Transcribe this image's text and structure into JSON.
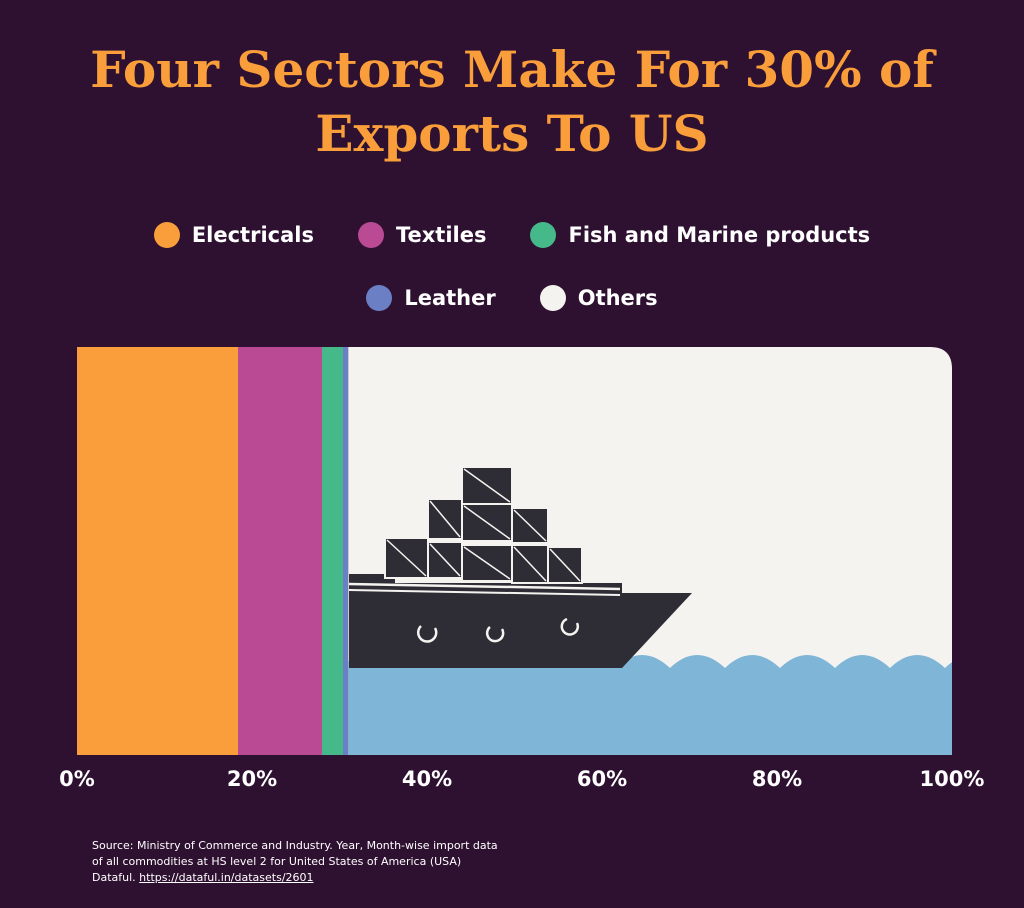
{
  "chart_data": {
    "type": "bar",
    "orientation": "horizontal-stacked-100",
    "title": "Four Sectors Make For 30% of Exports To US",
    "title_lines": [
      "Four Sectors Make For 30% of",
      "Exports To US"
    ],
    "series": [
      {
        "name": "Electricals",
        "value": 18.4,
        "color": "#f99e3a"
      },
      {
        "name": "Textiles",
        "value": 9.6,
        "color": "#b94a93"
      },
      {
        "name": "Fish and Marine products",
        "value": 2.4,
        "color": "#46b98a"
      },
      {
        "name": "Leather",
        "value": 0.6,
        "color": "#6b80c4"
      },
      {
        "name": "Others",
        "value": 69.0,
        "color": "#f5f3ef"
      }
    ],
    "xlim": [
      0,
      100
    ],
    "xticks": [
      "0%",
      "20%",
      "40%",
      "60%",
      "80%",
      "100%"
    ],
    "xtick_values": [
      0,
      20,
      40,
      60,
      80,
      100
    ],
    "legend_rows": [
      [
        "Electricals",
        "Textiles",
        "Fish and Marine products"
      ],
      [
        "Leather",
        "Others"
      ]
    ],
    "water_color": "#7fb5d6",
    "ship_color": "#2e2c35"
  },
  "source": {
    "line1": "Source: Ministry of Commerce and Industry. Year, Month-wise import data",
    "line2": "of all commodities at HS level 2 for United States of America (USA)",
    "line3_prefix": "Dataful. ",
    "link": "https://dataful.in/datasets/2601"
  }
}
